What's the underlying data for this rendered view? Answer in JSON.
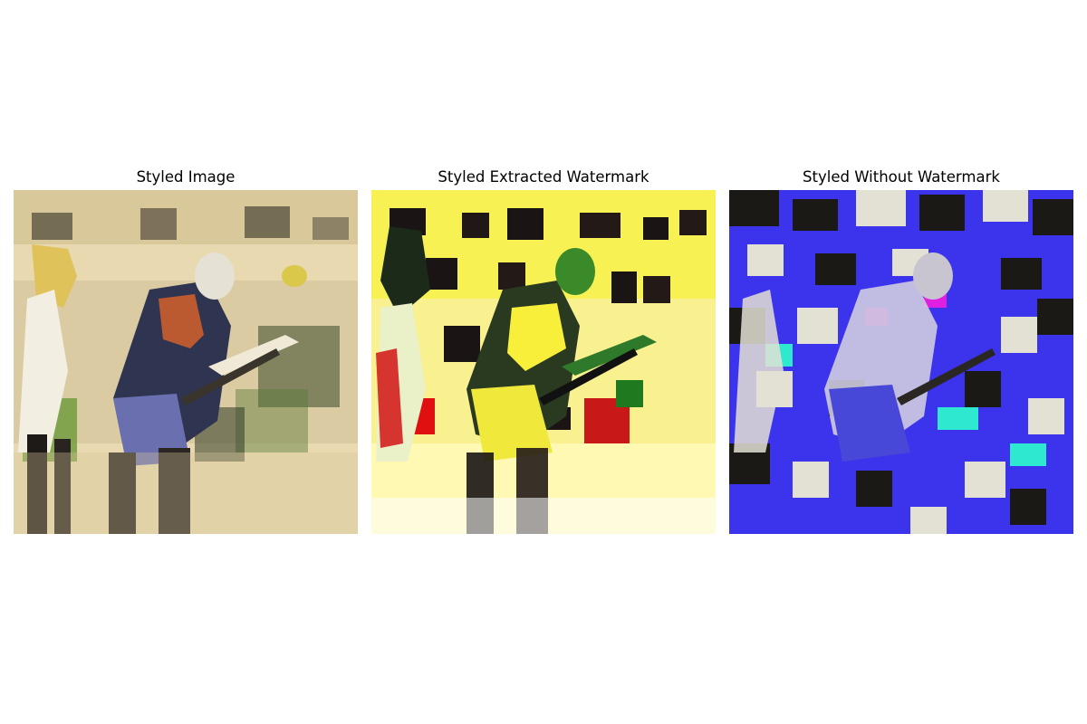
{
  "figure": {
    "panels": [
      {
        "title": "Styled Image"
      },
      {
        "title": "Styled Extracted Watermark"
      },
      {
        "title": "Styled Without Watermark"
      }
    ]
  }
}
